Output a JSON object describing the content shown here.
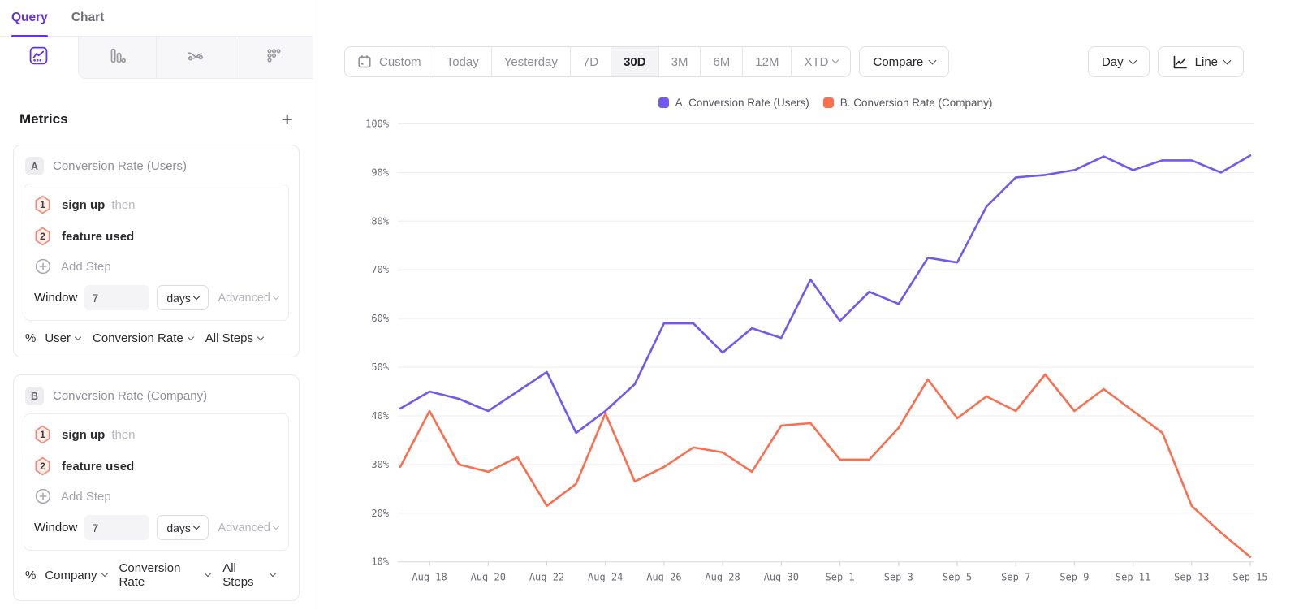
{
  "colors": {
    "accent": "#6233E4",
    "series_a": "#7457EF",
    "series_b": "#FB6E4F",
    "hex_border": "#F28B76",
    "hex_fill": "#FCEDE9"
  },
  "sidebar": {
    "tabs": {
      "query": "Query",
      "chart": "Chart"
    },
    "view_tabs": [
      "insights",
      "funnel",
      "flows",
      "retention"
    ],
    "metrics_header": {
      "title": "Metrics",
      "add_label": "+"
    },
    "metrics": [
      {
        "id": "A",
        "title": "Conversion Rate (Users)",
        "steps": [
          {
            "num": "1",
            "event": "sign up",
            "suffix": "then"
          },
          {
            "num": "2",
            "event": "feature used",
            "suffix": ""
          }
        ],
        "add_step_label": "Add Step",
        "window": {
          "label": "Window",
          "value": "7",
          "unit": "days",
          "advanced_label": "Advanced"
        },
        "measurement": {
          "symbol": "%",
          "entity": "User",
          "metric": "Conversion Rate",
          "scope": "All Steps"
        }
      },
      {
        "id": "B",
        "title": "Conversion Rate (Company)",
        "steps": [
          {
            "num": "1",
            "event": "sign up",
            "suffix": "then"
          },
          {
            "num": "2",
            "event": "feature used",
            "suffix": ""
          }
        ],
        "add_step_label": "Add Step",
        "window": {
          "label": "Window",
          "value": "7",
          "unit": "days",
          "advanced_label": "Advanced"
        },
        "measurement": {
          "symbol": "%",
          "entity": "Company",
          "metric": "Conversion Rate",
          "scope": "All Steps"
        }
      }
    ]
  },
  "toolbar": {
    "date_ranges": [
      "Custom",
      "Today",
      "Yesterday",
      "7D",
      "30D",
      "3M",
      "6M",
      "12M",
      "XTD"
    ],
    "active_range": "30D",
    "compare_label": "Compare",
    "granularity_label": "Day",
    "chart_type_label": "Line"
  },
  "chart_data": {
    "type": "line",
    "title": "",
    "xlabel": "",
    "ylabel": "",
    "ylim": [
      10,
      100
    ],
    "y_tick_step": 10,
    "y_tick_format": "percent",
    "grid": true,
    "legend_position": "top",
    "x": [
      "Aug 17",
      "Aug 18",
      "Aug 19",
      "Aug 20",
      "Aug 21",
      "Aug 22",
      "Aug 23",
      "Aug 24",
      "Aug 25",
      "Aug 26",
      "Aug 27",
      "Aug 28",
      "Aug 29",
      "Aug 30",
      "Aug 31",
      "Sep 1",
      "Sep 2",
      "Sep 3",
      "Sep 4",
      "Sep 5",
      "Sep 6",
      "Sep 7",
      "Sep 8",
      "Sep 9",
      "Sep 10",
      "Sep 11",
      "Sep 12",
      "Sep 13",
      "Sep 14",
      "Sep 15"
    ],
    "x_tick_labels": [
      "Aug 18",
      "Aug 20",
      "Aug 22",
      "Aug 24",
      "Aug 26",
      "Aug 28",
      "Aug 30",
      "Sep 1",
      "Sep 3",
      "Sep 5",
      "Sep 7",
      "Sep 9",
      "Sep 11",
      "Sep 13",
      "Sep 15"
    ],
    "series": [
      {
        "name": "A. Conversion Rate (Users)",
        "color": "#7457EF",
        "values": [
          41.5,
          45,
          43.5,
          41,
          45,
          49,
          36.5,
          41,
          46.5,
          59,
          59,
          53,
          58,
          56,
          68,
          59.5,
          65.5,
          63,
          72.5,
          71.5,
          83,
          89,
          89.5,
          90.5,
          93.3,
          90.5,
          92.5,
          92.5,
          90,
          93.5
        ]
      },
      {
        "name": "B. Conversion Rate (Company)",
        "color": "#FB6E4F",
        "values": [
          29.5,
          41,
          30,
          28.5,
          31.5,
          21.5,
          26,
          40.5,
          26.5,
          29.5,
          33.5,
          32.5,
          28.5,
          38,
          38.5,
          31,
          31,
          37.5,
          47.5,
          39.5,
          44,
          41,
          48.5,
          41,
          45.5,
          41,
          36.5,
          21.5,
          16,
          11
        ]
      }
    ]
  }
}
